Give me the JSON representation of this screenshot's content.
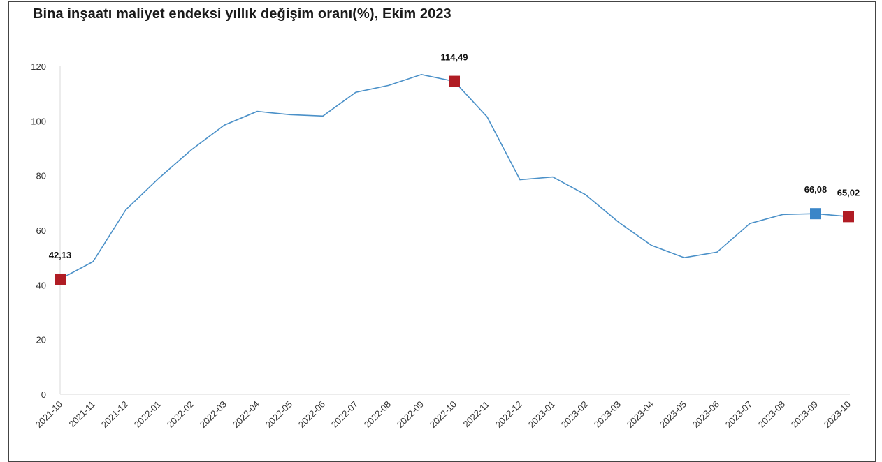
{
  "chart_data": {
    "type": "line",
    "title": "Bina inşaatı maliyet endeksi yıllık değişim oranı(%), Ekim 2023",
    "xlabel": "",
    "ylabel": "",
    "ylim": [
      0,
      120
    ],
    "yticks": [
      "0",
      "20",
      "40",
      "60",
      "80",
      "100",
      "120"
    ],
    "categories": [
      "2021-10",
      "2021-11",
      "2021-12",
      "2022-01",
      "2022-02",
      "2022-03",
      "2022-04",
      "2022-05",
      "2022-06",
      "2022-07",
      "2022-08",
      "2022-09",
      "2022-10",
      "2022-11",
      "2022-12",
      "2023-01",
      "2023-02",
      "2023-03",
      "2023-04",
      "2023-05",
      "2023-06",
      "2023-07",
      "2023-08",
      "2023-09",
      "2023-10"
    ],
    "series": [
      {
        "values": [
          42.13,
          48.5,
          67.5,
          79.0,
          89.5,
          98.5,
          103.5,
          102.3,
          101.8,
          110.5,
          113.0,
          117.0,
          114.49,
          101.5,
          78.5,
          79.5,
          73.0,
          63.0,
          54.5,
          50.0,
          52.0,
          62.5,
          65.8,
          66.08,
          65.02
        ],
        "color": "#4a90c8"
      }
    ],
    "highlights": [
      {
        "category": "2021-10",
        "value": 42.13,
        "label": "42,13",
        "color": "#b01c24"
      },
      {
        "category": "2022-10",
        "value": 114.49,
        "label": "114,49",
        "color": "#b01c24"
      },
      {
        "category": "2023-09",
        "value": 66.08,
        "label": "66,08",
        "color": "#3a86c8"
      },
      {
        "category": "2023-10",
        "value": 65.02,
        "label": "65,02",
        "color": "#b01c24"
      }
    ],
    "grid": false,
    "legend": "none"
  }
}
